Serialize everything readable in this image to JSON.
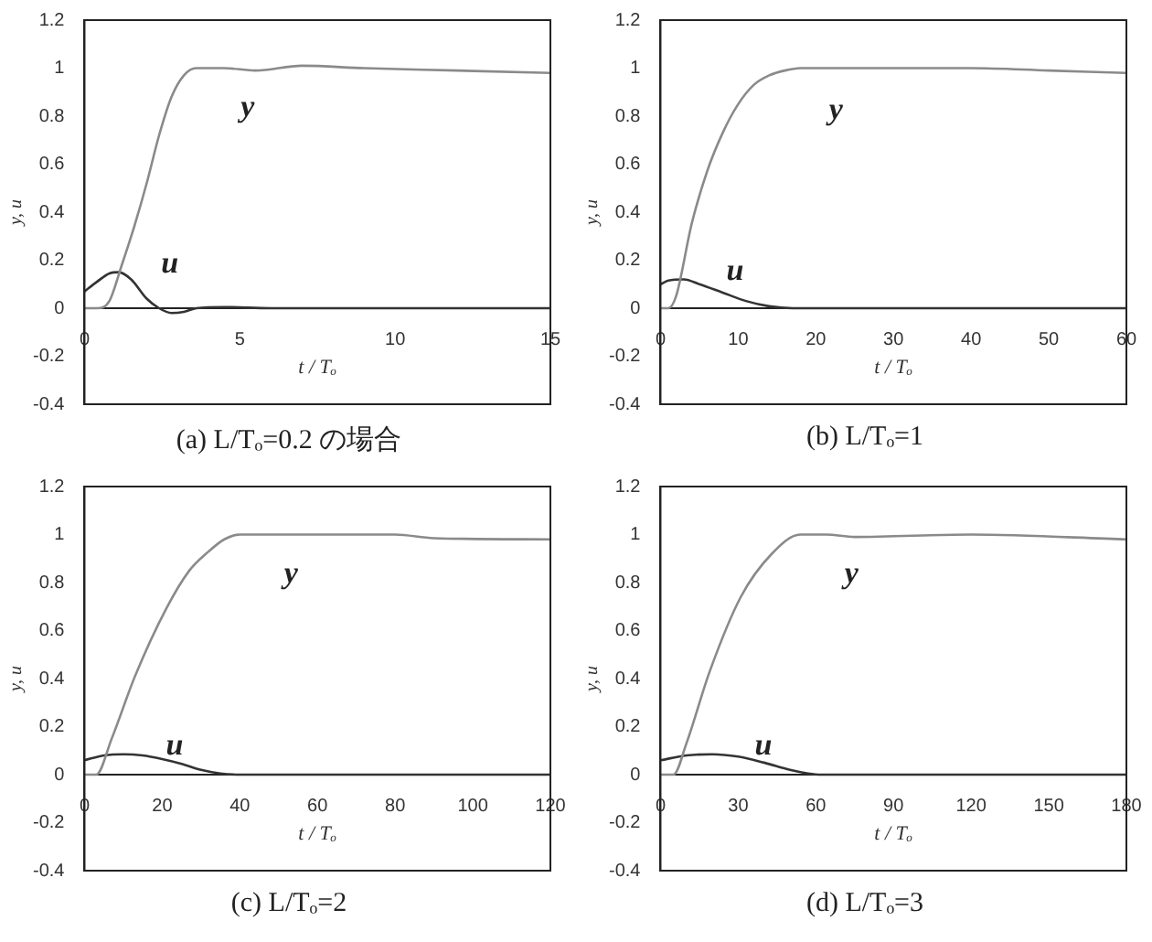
{
  "chart_data": [
    {
      "type": "line",
      "title": "(a) L/Tₒ=0.2 の場合",
      "xlabel": "t / Tₒ",
      "ylabel": "y, u",
      "xlim": [
        0,
        15
      ],
      "xticks": [
        0,
        5,
        10,
        15
      ],
      "ylim": [
        -0.4,
        1.2
      ],
      "yticks": [
        -0.4,
        -0.2,
        0,
        0.2,
        0.4,
        0.6,
        0.8,
        1,
        1.2
      ],
      "series": [
        {
          "name": "y",
          "color": "#8a8a8a",
          "x": [
            0,
            0.4,
            0.8,
            1.2,
            1.6,
            2,
            2.4,
            2.8,
            3.2,
            3.6,
            4.5,
            5.5,
            7,
            9,
            12,
            15
          ],
          "values": [
            0,
            0,
            0.03,
            0.18,
            0.34,
            0.52,
            0.72,
            0.88,
            0.97,
            1,
            1,
            0.99,
            1.01,
            1,
            0.99,
            0.98
          ]
        },
        {
          "name": "u",
          "color": "#333333",
          "x": [
            0,
            0.4,
            0.8,
            1.1,
            1.5,
            2,
            2.4,
            2.8,
            3.2,
            3.6,
            4.5,
            6,
            15
          ],
          "values": [
            0.07,
            0.11,
            0.145,
            0.15,
            0.12,
            0.04,
            0,
            -0.02,
            -0.015,
            0,
            0.005,
            0,
            0
          ]
        }
      ]
    },
    {
      "type": "line",
      "title": "(b) L/Tₒ=1",
      "xlabel": "t / Tₒ",
      "ylabel": "y, u",
      "xlim": [
        0,
        60
      ],
      "xticks": [
        0,
        10,
        20,
        30,
        40,
        50,
        60
      ],
      "ylim": [
        -0.4,
        1.2
      ],
      "yticks": [
        -0.4,
        -0.2,
        0,
        0.2,
        0.4,
        0.6,
        0.8,
        1,
        1.2
      ],
      "series": [
        {
          "name": "y",
          "color": "#8a8a8a",
          "x": [
            0,
            1,
            2,
            4,
            6,
            8,
            10,
            12,
            14,
            16,
            18,
            20,
            40,
            50,
            60
          ],
          "values": [
            0,
            0,
            0.05,
            0.35,
            0.57,
            0.73,
            0.85,
            0.93,
            0.97,
            0.99,
            1,
            1,
            1,
            0.99,
            0.98
          ]
        },
        {
          "name": "u",
          "color": "#333333",
          "x": [
            0,
            1,
            3,
            5,
            8,
            11,
            14,
            17,
            60
          ],
          "values": [
            0.1,
            0.115,
            0.12,
            0.1,
            0.065,
            0.03,
            0.008,
            0,
            0
          ]
        }
      ]
    },
    {
      "type": "line",
      "title": "(c) L/Tₒ=2",
      "xlabel": "t / Tₒ",
      "ylabel": "y, u",
      "xlim": [
        0,
        120
      ],
      "xticks": [
        0,
        20,
        40,
        60,
        80,
        100,
        120
      ],
      "ylim": [
        -0.4,
        1.2
      ],
      "yticks": [
        -0.4,
        -0.2,
        0,
        0.2,
        0.4,
        0.6,
        0.8,
        1,
        1.2
      ],
      "series": [
        {
          "name": "y",
          "color": "#8a8a8a",
          "x": [
            0,
            3,
            7,
            13,
            21,
            27,
            32,
            36,
            40,
            80,
            90,
            120
          ],
          "values": [
            0,
            0,
            0.15,
            0.41,
            0.69,
            0.85,
            0.93,
            0.98,
            1,
            1,
            0.985,
            0.98
          ]
        },
        {
          "name": "u",
          "color": "#333333",
          "x": [
            0,
            5,
            10,
            15,
            20,
            25,
            30,
            35,
            40,
            120
          ],
          "values": [
            0.06,
            0.08,
            0.085,
            0.08,
            0.065,
            0.045,
            0.02,
            0.005,
            0,
            0
          ]
        }
      ]
    },
    {
      "type": "line",
      "title": "(d) L/Tₒ=3",
      "xlabel": "t / Tₒ",
      "ylabel": "y, u",
      "xlim": [
        0,
        180
      ],
      "xticks": [
        0,
        30,
        60,
        90,
        120,
        150,
        180
      ],
      "ylim": [
        -0.4,
        1.2
      ],
      "yticks": [
        -0.4,
        -0.2,
        0,
        0.2,
        0.4,
        0.6,
        0.8,
        1,
        1.2
      ],
      "series": [
        {
          "name": "y",
          "color": "#8a8a8a",
          "x": [
            0,
            5,
            10,
            19,
            31,
            43,
            54,
            64,
            75,
            120,
            180
          ],
          "values": [
            0,
            0,
            0.13,
            0.43,
            0.74,
            0.92,
            1,
            1,
            0.99,
            1,
            0.98
          ]
        },
        {
          "name": "u",
          "color": "#333333",
          "x": [
            0,
            10,
            20,
            30,
            40,
            50,
            57,
            62,
            180
          ],
          "values": [
            0.06,
            0.08,
            0.085,
            0.075,
            0.05,
            0.02,
            0.005,
            0,
            0
          ]
        }
      ]
    }
  ]
}
